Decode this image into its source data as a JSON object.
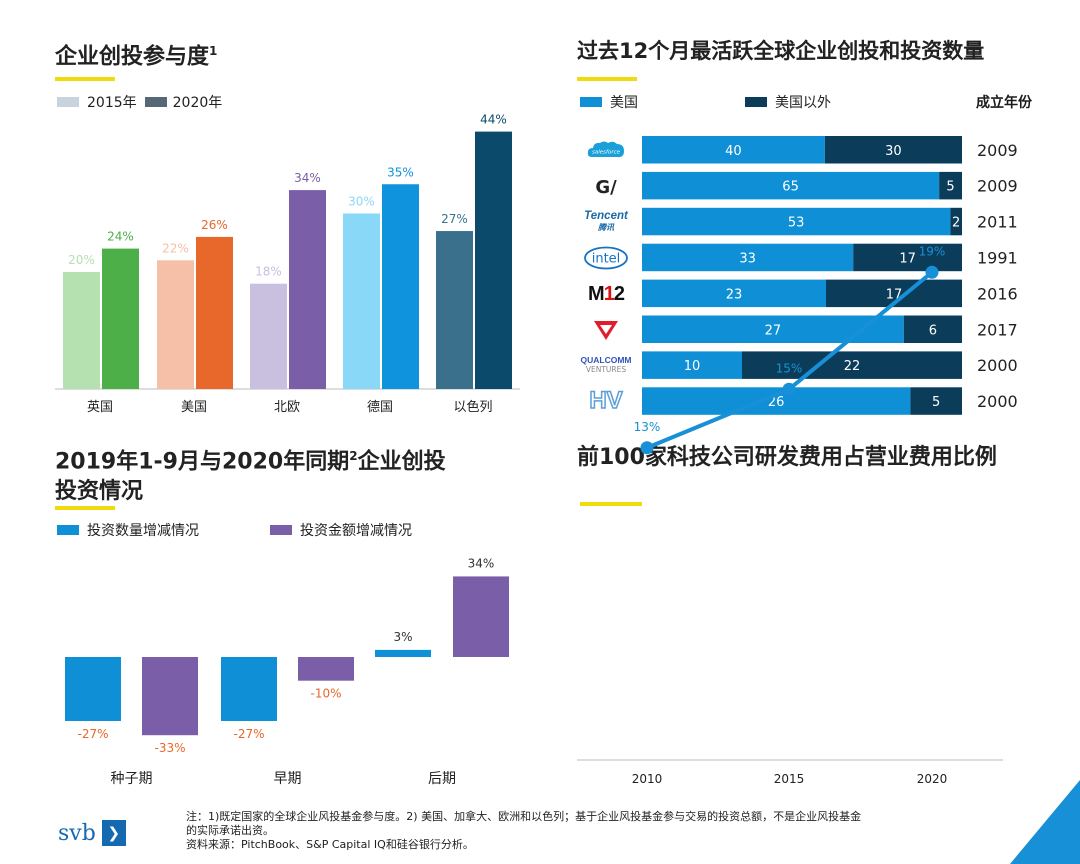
{
  "panel1": {
    "title": "企业创投参与度",
    "title_sup": "1",
    "legend": [
      {
        "label": "2015年",
        "color": "#c8d3dd"
      },
      {
        "label": "2020年",
        "color": "#566878"
      }
    ]
  },
  "panel2": {
    "title": "过去12个月最活跃全球企业创投和投资数量",
    "legend": [
      {
        "label": "美国",
        "color": "#0f8fd6"
      },
      {
        "label": "美国以外",
        "color": "#0b3d5b"
      }
    ],
    "col_header": "成立年份"
  },
  "panel3": {
    "title_line1": "2019年1-9月与2020年同期",
    "title_sup": "2",
    "title_line1_after": "企业创投",
    "title_line2": "投资情况",
    "legend": [
      {
        "label": "投资数量增减情况",
        "color": "#0f8fd6"
      },
      {
        "label": "投资金额增减情况",
        "color": "#7b5ea8"
      }
    ]
  },
  "panel4": {
    "title": "前100家科技公司研发费用占营业费用比例"
  },
  "chart_data": [
    {
      "type": "bar",
      "categories": [
        "英国",
        "美国",
        "北欧",
        "德国",
        "以色列"
      ],
      "series": [
        {
          "name": "2015年",
          "values": [
            20,
            22,
            18,
            30,
            27
          ],
          "colors": [
            "#b5e0b0",
            "#f5c0a7",
            "#c9bfdf",
            "#8ad8f8",
            "#3b708d"
          ]
        },
        {
          "name": "2020年",
          "values": [
            24,
            26,
            34,
            35,
            44
          ],
          "colors": [
            "#4caf48",
            "#e8672a",
            "#7b5ea8",
            "#0f93dc",
            "#0b4a6b"
          ]
        }
      ],
      "label_suffix": "%",
      "ylim": [
        0,
        50
      ]
    },
    {
      "type": "bar",
      "orientation": "horizontal",
      "stacked": true,
      "categories": [
        "salesforce",
        "G/",
        "Tencent 腾讯",
        "intel",
        "M12",
        "V",
        "QUALCOMM VENTURES",
        "HV"
      ],
      "series": [
        {
          "name": "美国",
          "values": [
            40,
            65,
            53,
            33,
            23,
            27,
            10,
            26
          ]
        },
        {
          "name": "美国以外",
          "values": [
            30,
            5,
            2,
            17,
            17,
            6,
            22,
            5
          ]
        }
      ],
      "founded_years": [
        "2009",
        "2009",
        "2011",
        "1991",
        "2016",
        "2017",
        "2000",
        "2000"
      ]
    },
    {
      "type": "bar",
      "categories": [
        "种子期",
        "早期",
        "后期"
      ],
      "series": [
        {
          "name": "投资数量增减情况",
          "values": [
            -27,
            -27,
            3
          ]
        },
        {
          "name": "投资金额增减情况",
          "values": [
            -33,
            -10,
            34
          ]
        }
      ],
      "label_suffix": "%"
    },
    {
      "type": "line",
      "x": [
        "2010",
        "2015",
        "2020"
      ],
      "series": [
        {
          "values": [
            13,
            15,
            19
          ]
        }
      ],
      "label_suffix": "%"
    }
  ],
  "footer": {
    "note_line1": "注：1)既定国家的全球企业风投基金参与度。2) 美国、加拿大、欧洲和以色列；基于企业风投基金参与交易的投资总额，不是企业风投基金",
    "note_line2": "的实际承诺出资。",
    "source": "资料来源：PitchBook、S&P Capital IQ和硅谷银行分析。",
    "logo_text": "svb",
    "logo_arrow": "❯"
  }
}
